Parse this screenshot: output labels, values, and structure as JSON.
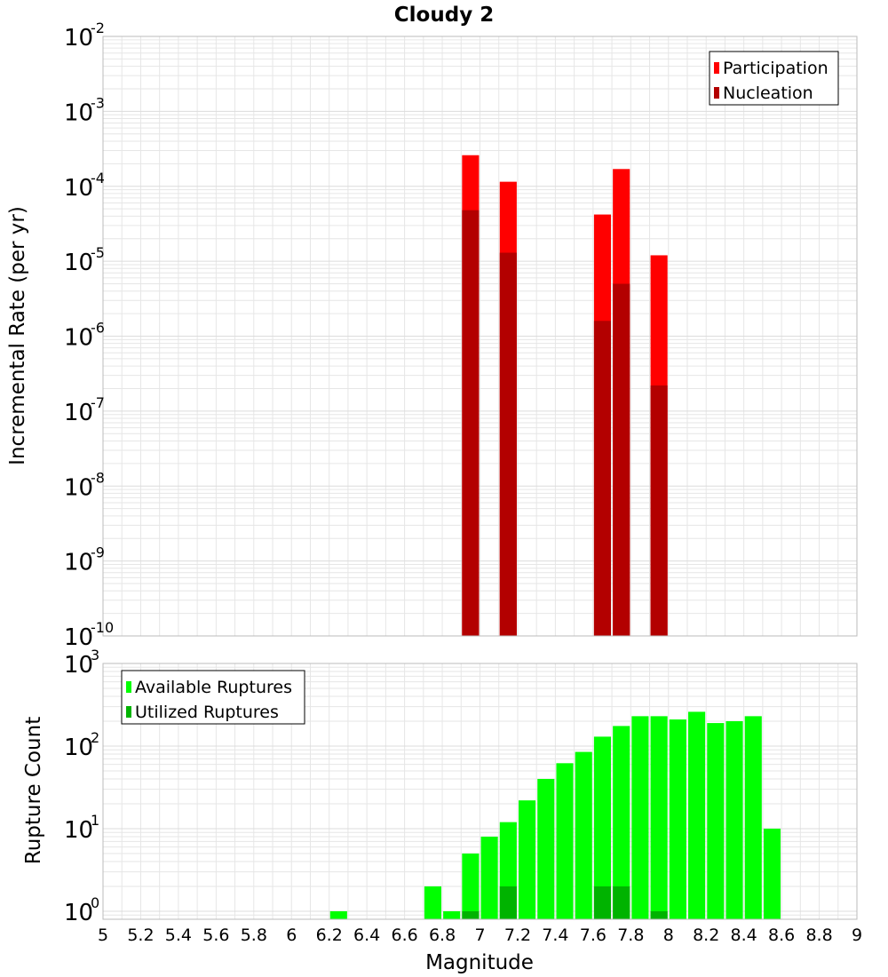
{
  "colors": {
    "participation": "#ff0000",
    "nucleation": "#b30000",
    "available": "#00ff00",
    "utilized": "#00b300",
    "grid": "#e6e6e6",
    "plot_border": "#bbbbbb"
  },
  "chart_data": [
    {
      "type": "bar",
      "title": "Cloudy 2",
      "ylabel": "Incremental Rate (per yr)",
      "yscale": "log",
      "ylim": [
        1e-10,
        0.01
      ],
      "y_ticks": [
        {
          "base": "10",
          "exp": "-2",
          "value": 0.01
        },
        {
          "base": "10",
          "exp": "-3",
          "value": 0.001
        },
        {
          "base": "10",
          "exp": "-4",
          "value": 0.0001
        },
        {
          "base": "10",
          "exp": "-5",
          "value": 1e-05
        },
        {
          "base": "10",
          "exp": "-6",
          "value": 1e-06
        },
        {
          "base": "10",
          "exp": "-7",
          "value": 1e-07
        },
        {
          "base": "10",
          "exp": "-8",
          "value": 1e-08
        },
        {
          "base": "10",
          "exp": "-9",
          "value": 1e-09
        },
        {
          "base": "10",
          "exp": "-10",
          "value": 1e-10
        }
      ],
      "legend": {
        "position": "top-right",
        "entries": [
          "Participation",
          "Nucleation"
        ]
      },
      "grid": true,
      "bar_width": 0.09,
      "series": [
        {
          "name": "Participation",
          "x": [
            6.95,
            7.15,
            7.65,
            7.75,
            7.95
          ],
          "values": [
            0.00026,
            0.000115,
            4.2e-05,
            0.00017,
            1.2e-05
          ]
        },
        {
          "name": "Nucleation",
          "x": [
            6.95,
            7.15,
            7.65,
            7.75,
            7.95
          ],
          "values": [
            4.8e-05,
            1.3e-05,
            1.6e-06,
            5e-06,
            2.2e-07
          ]
        }
      ]
    },
    {
      "type": "bar",
      "ylabel": "Rupture Count",
      "xlabel": "Magnitude",
      "yscale": "log",
      "ylim": [
        0.8,
        1000
      ],
      "xlim": [
        5,
        9
      ],
      "y_ticks": [
        {
          "base": "10",
          "exp": "3",
          "value": 1000
        },
        {
          "base": "10",
          "exp": "2",
          "value": 100
        },
        {
          "base": "10",
          "exp": "1",
          "value": 10
        },
        {
          "base": "10",
          "exp": "0",
          "value": 1
        }
      ],
      "x_ticks": [
        "5",
        "5.2",
        "5.4",
        "5.6",
        "5.8",
        "6",
        "6.2",
        "6.4",
        "6.6",
        "6.8",
        "7",
        "7.2",
        "7.4",
        "7.6",
        "7.8",
        "8",
        "8.2",
        "8.4",
        "8.6",
        "8.8",
        "9"
      ],
      "legend": {
        "position": "top-left",
        "entries": [
          "Available Ruptures",
          "Utilized Ruptures"
        ]
      },
      "grid": true,
      "bar_width": 0.09,
      "series": [
        {
          "name": "Available Ruptures",
          "x": [
            6.25,
            6.75,
            6.85,
            6.95,
            7.05,
            7.15,
            7.25,
            7.35,
            7.45,
            7.55,
            7.65,
            7.75,
            7.85,
            7.95,
            8.05,
            8.15,
            8.25,
            8.35,
            8.45,
            8.55
          ],
          "values": [
            1,
            2,
            1,
            5,
            8,
            12,
            22,
            40,
            62,
            85,
            130,
            175,
            230,
            230,
            210,
            260,
            190,
            200,
            230,
            10
          ]
        },
        {
          "name": "Utilized Ruptures",
          "x": [
            6.95,
            7.15,
            7.65,
            7.75,
            7.95
          ],
          "values": [
            1,
            2,
            2,
            2,
            1
          ]
        }
      ]
    }
  ]
}
